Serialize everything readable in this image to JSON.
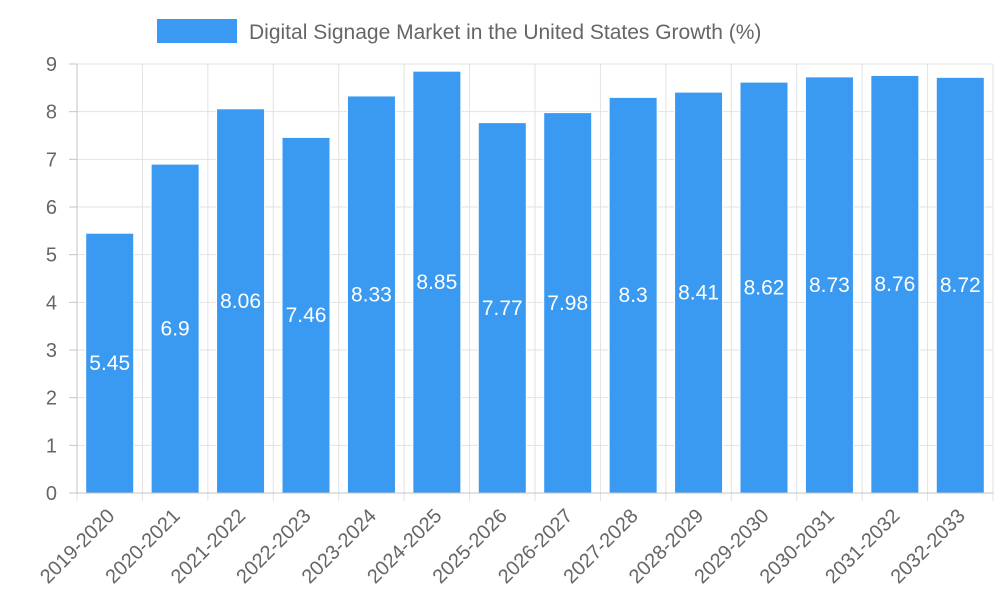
{
  "chart_data": {
    "type": "bar",
    "title": "",
    "xlabel": "",
    "ylabel": "",
    "legend": {
      "position": "top-center",
      "entries": [
        "Digital Signage Market in the United States Growth (%)"
      ]
    },
    "categories": [
      "2019-2020",
      "2020-2021",
      "2021-2022",
      "2022-2023",
      "2023-2024",
      "2024-2025",
      "2025-2026",
      "2026-2027",
      "2027-2028",
      "2028-2029",
      "2029-2030",
      "2030-2031",
      "2031-2032",
      "2032-2033"
    ],
    "series": [
      {
        "name": "Digital Signage Market in the United States Growth (%)",
        "color": "#3a99f0",
        "values": [
          5.45,
          6.9,
          8.06,
          7.46,
          8.33,
          8.85,
          7.77,
          7.98,
          8.3,
          8.41,
          8.62,
          8.73,
          8.76,
          8.72
        ],
        "labels": [
          "5.45",
          "6.9",
          "8.06",
          "7.46",
          "8.33",
          "8.85",
          "7.77",
          "7.98",
          "8.3",
          "8.41",
          "8.62",
          "8.73",
          "8.76",
          "8.72"
        ]
      }
    ],
    "ylim": [
      0,
      9
    ],
    "yticks": [
      0,
      1,
      2,
      3,
      4,
      5,
      6,
      7,
      8,
      9
    ],
    "ytick_labels": [
      "0",
      "1",
      "2",
      "3",
      "4",
      "5",
      "6",
      "7",
      "8",
      "9"
    ],
    "grid": true,
    "colors": {
      "bar": "#3a99f0",
      "bar_border": "#ffffff",
      "grid": "#e2e2e2",
      "axis": "#c4c4c4",
      "tick_text": "#666666",
      "label_text": "#ffffff"
    }
  }
}
